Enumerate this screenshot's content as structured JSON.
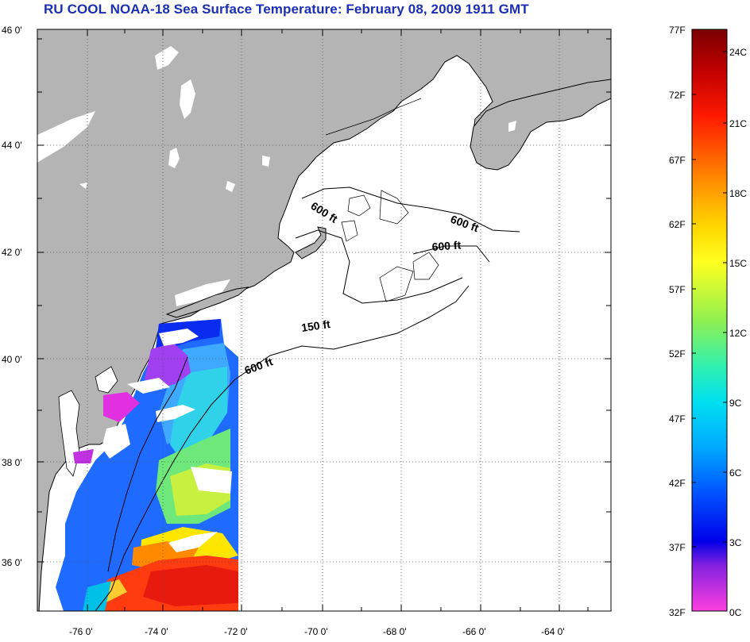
{
  "title": "RU COOL  NOAA-18  Sea Surface Temperature:  February 08, 2009 1911 GMT",
  "map": {
    "lat_labels": [
      "46 0'",
      "44 0'",
      "42 0'",
      "40 0'",
      "38 0'",
      "36 0'"
    ],
    "lon_labels": [
      "-76 0'",
      "-74 0'",
      "-72 0'",
      "-70 0'",
      "-68 0'",
      "-66 0'",
      "-64 0'"
    ],
    "contours": [
      "600 ft",
      "600 ft",
      "600 ft",
      "150 ft",
      "600 ft"
    ],
    "colors": {
      "land": "#b4b4b4",
      "ocean_nodata": "#ffffff",
      "coastline": "#000000"
    }
  },
  "colorbar": {
    "fahrenheit_labels": [
      "77F",
      "72F",
      "67F",
      "62F",
      "57F",
      "52F",
      "47F",
      "42F",
      "37F",
      "32F"
    ],
    "celsius_labels": [
      "24C",
      "21C",
      "18C",
      "15C",
      "12C",
      "9C",
      "6C",
      "3C",
      "0C"
    ],
    "gradient_stops": [
      "#7a0000",
      "#d40000",
      "#ff2a00",
      "#ff8c00",
      "#ffd700",
      "#ffff20",
      "#8cf050",
      "#20e8c8",
      "#00d0ff",
      "#0090ff",
      "#1040ff",
      "#0000e0",
      "#8020e0",
      "#ff40e0"
    ]
  }
}
